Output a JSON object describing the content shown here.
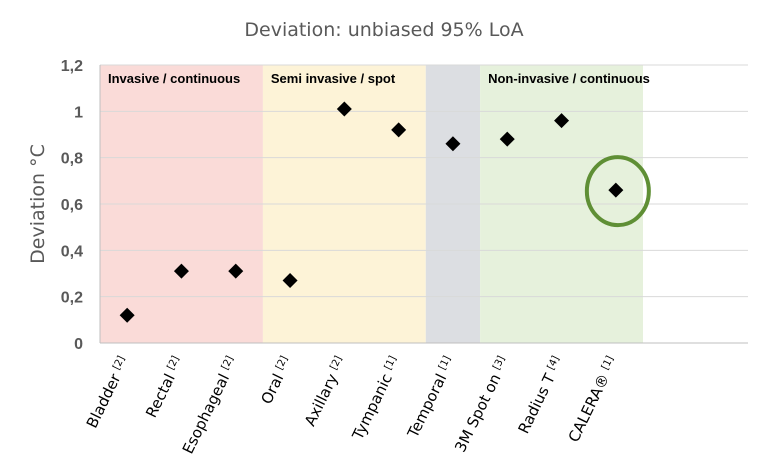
{
  "chart_data": {
    "type": "scatter",
    "title": "Deviation: unbiased 95% LoA",
    "ylabel": "Deviation °C",
    "xlabel": "",
    "ylim": [
      0,
      1.2
    ],
    "yticks": [
      "0",
      "0,2",
      "0,4",
      "0,6",
      "0,8",
      "1",
      "1,2"
    ],
    "categories": [
      {
        "label": "Bladder",
        "ref": "[2]"
      },
      {
        "label": "Rectal",
        "ref": "[2]"
      },
      {
        "label": "Esophageal",
        "ref": "[2]"
      },
      {
        "label": "Oral",
        "ref": "[2]"
      },
      {
        "label": "Axillary",
        "ref": "[2]"
      },
      {
        "label": "Tympanic",
        "ref": "[1]"
      },
      {
        "label": "Temporal",
        "ref": "[1]"
      },
      {
        "label": "3M Spot on",
        "ref": "[3]"
      },
      {
        "label": "Radius T",
        "ref": "[4]"
      },
      {
        "label": "CALERA®",
        "ref": "[1]"
      }
    ],
    "values": [
      0.12,
      0.31,
      0.31,
      0.27,
      1.01,
      0.92,
      0.86,
      0.88,
      0.96,
      0.66
    ],
    "regions": [
      {
        "label": "Invasive  / continuous",
        "from": 0,
        "to": 3,
        "color": "#fadbd8"
      },
      {
        "label": "Semi invasive  / spot",
        "from": 3,
        "to": 6,
        "color": "#fdf3d7"
      },
      {
        "label": "",
        "from": 6,
        "to": 7,
        "color": "#dcdee2"
      },
      {
        "label": "Non-invasive  / continuous",
        "from": 7,
        "to": 10,
        "color": "#e6f1dc"
      }
    ],
    "highlight": {
      "category": "CALERA®",
      "color": "#5f8f35"
    },
    "marker": "diamond",
    "marker_color": "#000000",
    "grid": true,
    "legend": "none"
  }
}
